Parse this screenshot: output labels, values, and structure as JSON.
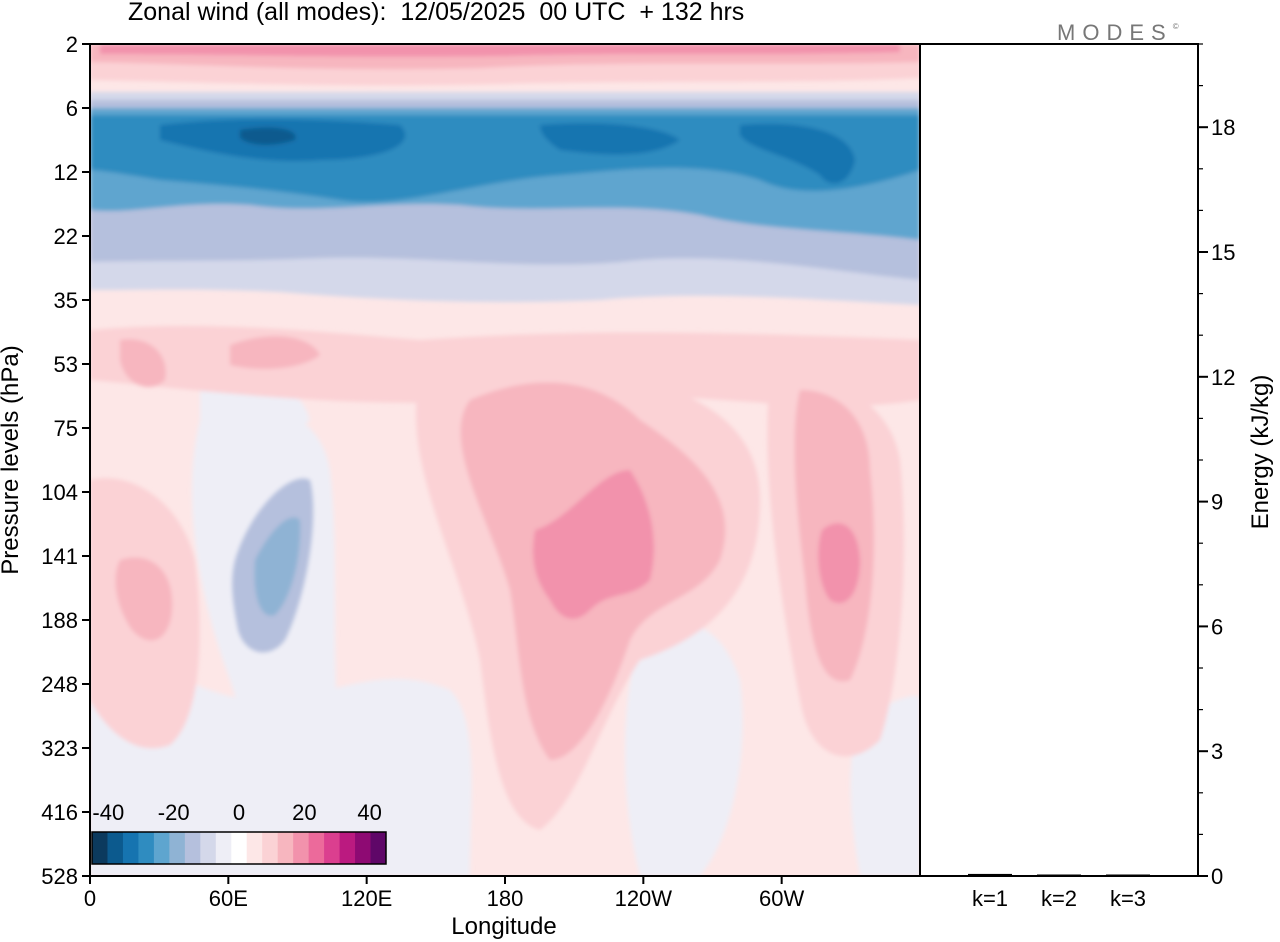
{
  "header": {
    "title": "Zonal wind (all modes):  12/05/2025  00 UTC  + 132 hrs",
    "brand": "MODES",
    "brand_mark": "©"
  },
  "chart_data": [
    {
      "type": "heatmap",
      "title": "Zonal wind (all modes):  12/05/2025  00 UTC  + 132 hrs",
      "xlabel": "Longitude",
      "ylabel": "Pressure levels (hPa)",
      "x_ticks": [
        "0",
        "60E",
        "120E",
        "180",
        "120W",
        "60W"
      ],
      "x_tick_values": [
        0,
        60,
        120,
        180,
        240,
        300
      ],
      "xlim": [
        0,
        360
      ],
      "y_ticks": [
        "2",
        "6",
        "12",
        "22",
        "35",
        "53",
        "75",
        "104",
        "141",
        "188",
        "248",
        "323",
        "416",
        "528"
      ],
      "colorbar": {
        "tick_labels": [
          "-40",
          "-20",
          "0",
          "20",
          "40"
        ],
        "tick_values": [
          -40,
          -20,
          0,
          20,
          40
        ],
        "range": [
          -45,
          45
        ],
        "step": 5,
        "colors": [
          "#0c3a5e",
          "#0c5a8e",
          "#1674b0",
          "#2f8cc0",
          "#5ea5cf",
          "#8fb3d4",
          "#b5c0dd",
          "#d4d8ea",
          "#eeeef6",
          "#ffffff",
          "#fde7e7",
          "#fbd2d5",
          "#f7b6bf",
          "#f292ac",
          "#ec6a9b",
          "#db3f8f",
          "#bb1a80",
          "#8e0a73",
          "#5f0768"
        ]
      },
      "regions": [
        {
          "name": "upper-easterly-jet",
          "value": -30,
          "lon": [
            0,
            360
          ],
          "level": [
            "6",
            "22"
          ]
        },
        {
          "name": "jet-core",
          "value": -40,
          "lon": [
            20,
            330
          ],
          "level": [
            "6",
            "12"
          ]
        },
        {
          "name": "stratopause-westerlies",
          "value": 12,
          "lon": [
            0,
            360
          ],
          "level": [
            "2",
            "6"
          ]
        },
        {
          "name": "subtropical-jet-dateline",
          "value": 25,
          "lon": [
            190,
            240
          ],
          "level": [
            "104",
            "188"
          ]
        },
        {
          "name": "subtropical-jet-east-pacific",
          "value": 25,
          "lon": [
            325,
            335
          ],
          "level": [
            "104",
            "188"
          ]
        },
        {
          "name": "easterlies-indian-ocean",
          "value": -18,
          "lon": [
            65,
            95
          ],
          "level": [
            "104",
            "248"
          ]
        }
      ]
    },
    {
      "type": "bar",
      "ylabel": "Energy (kJ/kg)",
      "categories": [
        "k=1",
        "k=2",
        "k=3"
      ],
      "values": [
        0.05,
        0.03,
        0.02
      ],
      "ylim": [
        0,
        20
      ],
      "y_ticks": [
        "0",
        "3",
        "6",
        "9",
        "12",
        "15",
        "18"
      ],
      "y_tick_values": [
        0,
        3,
        6,
        9,
        12,
        15,
        18
      ],
      "bar_color": "#000000"
    }
  ]
}
